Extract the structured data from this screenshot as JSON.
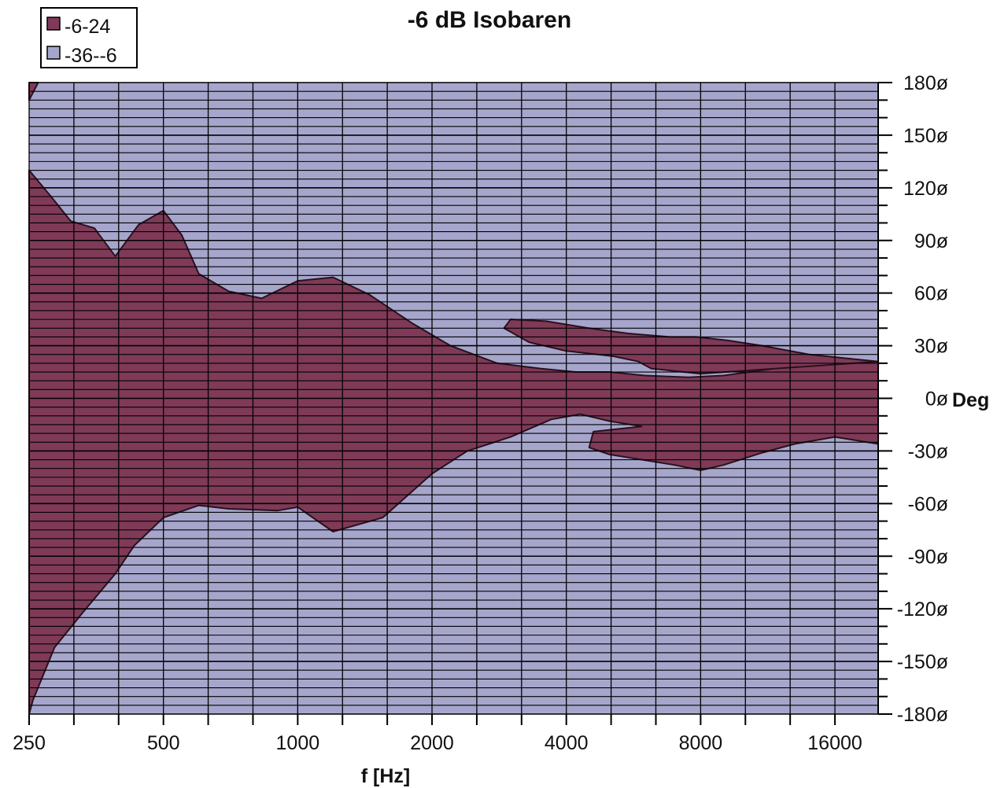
{
  "chart_data": {
    "type": "area",
    "title": "-6 dB Isobaren",
    "xlabel": "f [Hz]",
    "ylabel": "Deg",
    "x_scale": "log2",
    "xlim": [
      250,
      20000
    ],
    "ylim": [
      -180,
      180
    ],
    "x_ticks": [
      250,
      500,
      1000,
      2000,
      4000,
      8000,
      16000
    ],
    "x_tick_labels": [
      "250",
      "500",
      "1000",
      "2000",
      "4000",
      "8000",
      "16000"
    ],
    "y_ticks": [
      180,
      150,
      120,
      90,
      60,
      30,
      0,
      -30,
      -60,
      -90,
      -120,
      -150,
      -180
    ],
    "y_tick_labels": [
      "180ø",
      "150ø",
      "120ø",
      "90ø",
      "60ø",
      "30ø",
      "0ø",
      "-30ø",
      "-60ø",
      "-90ø",
      "-120ø",
      "-150ø",
      "-180ø"
    ],
    "grid": true,
    "legend_position": "top-left",
    "series": [
      {
        "name": "-6-24",
        "color": "#7f3a57",
        "role": "inner region (level from -6 to 24 dB)",
        "upper_boundary": [
          [
            250,
            130
          ],
          [
            280,
            115
          ],
          [
            310,
            101
          ],
          [
            350,
            97
          ],
          [
            390,
            81
          ],
          [
            440,
            99
          ],
          [
            500,
            107
          ],
          [
            550,
            93
          ],
          [
            600,
            71
          ],
          [
            700,
            61
          ],
          [
            830,
            57
          ],
          [
            1000,
            67
          ],
          [
            1200,
            69
          ],
          [
            1450,
            59
          ],
          [
            1800,
            43
          ],
          [
            2200,
            30
          ],
          [
            2800,
            20
          ],
          [
            3500,
            17
          ],
          [
            4200,
            15
          ],
          [
            5000,
            15
          ],
          [
            6000,
            13
          ],
          [
            7500,
            12
          ],
          [
            9000,
            13
          ],
          [
            11000,
            16
          ],
          [
            14000,
            20
          ],
          [
            20000,
            21
          ]
        ],
        "lower_boundary": [
          [
            250,
            -180
          ],
          [
            255,
            -172
          ],
          [
            285,
            -142
          ],
          [
            330,
            -122
          ],
          [
            390,
            -100
          ],
          [
            430,
            -84
          ],
          [
            500,
            -68
          ],
          [
            600,
            -61
          ],
          [
            700,
            -63
          ],
          [
            900,
            -64
          ],
          [
            1000,
            -62
          ],
          [
            1200,
            -76
          ],
          [
            1550,
            -68
          ],
          [
            2000,
            -43
          ],
          [
            2400,
            -30
          ],
          [
            3000,
            -22
          ],
          [
            3700,
            -12
          ],
          [
            4300,
            -9
          ],
          [
            5000,
            -13
          ],
          [
            5900,
            -16
          ],
          [
            4600,
            -19
          ],
          [
            4500,
            -28
          ],
          [
            5000,
            -32
          ],
          [
            7000,
            -38
          ],
          [
            8000,
            -41
          ],
          [
            9000,
            -38
          ],
          [
            11000,
            -31
          ],
          [
            13000,
            -26
          ],
          [
            16000,
            -22
          ],
          [
            20000,
            -26
          ]
        ],
        "side_lobe": [
          [
            3000,
            45
          ],
          [
            3600,
            44
          ],
          [
            4500,
            40
          ],
          [
            5500,
            37
          ],
          [
            6800,
            35
          ],
          [
            7800,
            35
          ],
          [
            9200,
            33
          ],
          [
            11000,
            30
          ],
          [
            14000,
            25
          ],
          [
            20000,
            21
          ],
          [
            8000,
            14
          ],
          [
            6200,
            17
          ],
          [
            5800,
            21
          ],
          [
            5100,
            24
          ],
          [
            4000,
            27
          ],
          [
            3300,
            32
          ],
          [
            2900,
            40
          ]
        ],
        "top_corner": [
          [
            250,
            180
          ],
          [
            262,
            180
          ],
          [
            250,
            170
          ]
        ]
      },
      {
        "name": "-36--6",
        "color": "#a6a6cc",
        "role": "outer region (level from -36 to -6 dB)"
      }
    ]
  }
}
